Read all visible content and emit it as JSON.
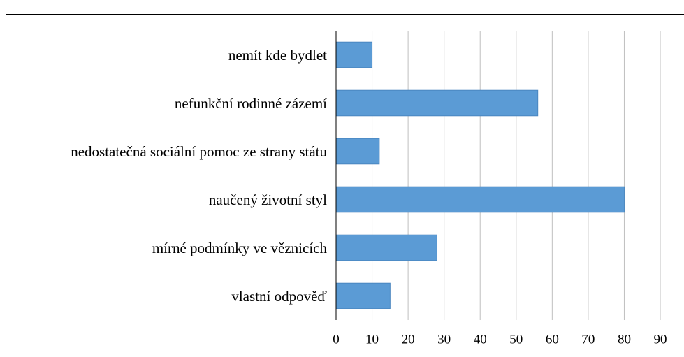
{
  "chart_data": {
    "type": "bar",
    "orientation": "horizontal",
    "categories": [
      "nemít kde bydlet",
      "nefunkční rodinné zázemí",
      "nedostatečná sociální pomoc ze strany státu",
      "naučený životní styl",
      "mírné podmínky ve věznicích",
      "vlastní odpověď"
    ],
    "values": [
      10,
      56,
      12,
      80,
      28,
      15
    ],
    "color": "#5b9bd5",
    "xlim": [
      0,
      90
    ],
    "xticks": [
      0,
      10,
      20,
      30,
      40,
      50,
      60,
      70,
      80,
      90
    ],
    "grid": true
  }
}
